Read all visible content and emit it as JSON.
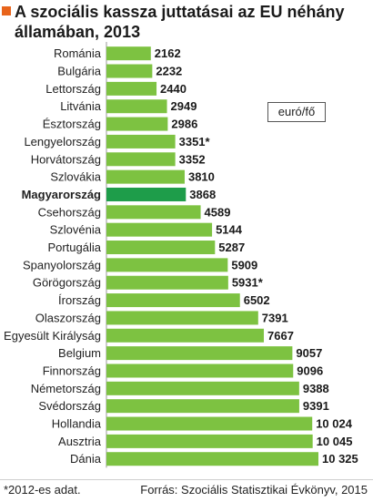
{
  "title": "A szociális kassza juttatásai az EU néhány\nállamában, 2013",
  "unit": "euró/fő",
  "footnote": "*2012-es adat.",
  "source": "Forrás: Szociális Statisztikai Évkönyv, 2015",
  "colors": {
    "bar": "#7dc241",
    "highlight": "#1e9d4a",
    "accent": "#e8641b"
  },
  "chart_data": {
    "type": "bar",
    "orientation": "horizontal",
    "categories": [
      "Románia",
      "Bulgária",
      "Lettország",
      "Litvánia",
      "Észtország",
      "Lengyelország",
      "Horvátország",
      "Szlovákia",
      "Magyarország",
      "Csehország",
      "Szlovénia",
      "Portugália",
      "Spanyolország",
      "Görögország",
      "Írország",
      "Olaszország",
      "Egyesült Királyság",
      "Belgium",
      "Finnország",
      "Németország",
      "Svédország",
      "Hollandia",
      "Ausztria",
      "Dánia"
    ],
    "values": [
      2162,
      2232,
      2440,
      2949,
      2986,
      3351,
      3352,
      3810,
      3868,
      4589,
      5144,
      5287,
      5909,
      5931,
      6502,
      7391,
      7667,
      9057,
      9096,
      9388,
      9391,
      10024,
      10045,
      10325
    ],
    "value_labels": [
      "2162",
      "2232",
      "2440",
      "2949",
      "2986",
      "3351*",
      "3352",
      "3810",
      "3868",
      "4589",
      "5144",
      "5287",
      "5909",
      "5931*",
      "6502",
      "7391",
      "7667",
      "9057",
      "9096",
      "9388",
      "9391",
      "10 024",
      "10 045",
      "10 325"
    ],
    "highlight": "Magyarország",
    "xlim": [
      0,
      10325
    ],
    "grid": false,
    "legend": "none"
  }
}
